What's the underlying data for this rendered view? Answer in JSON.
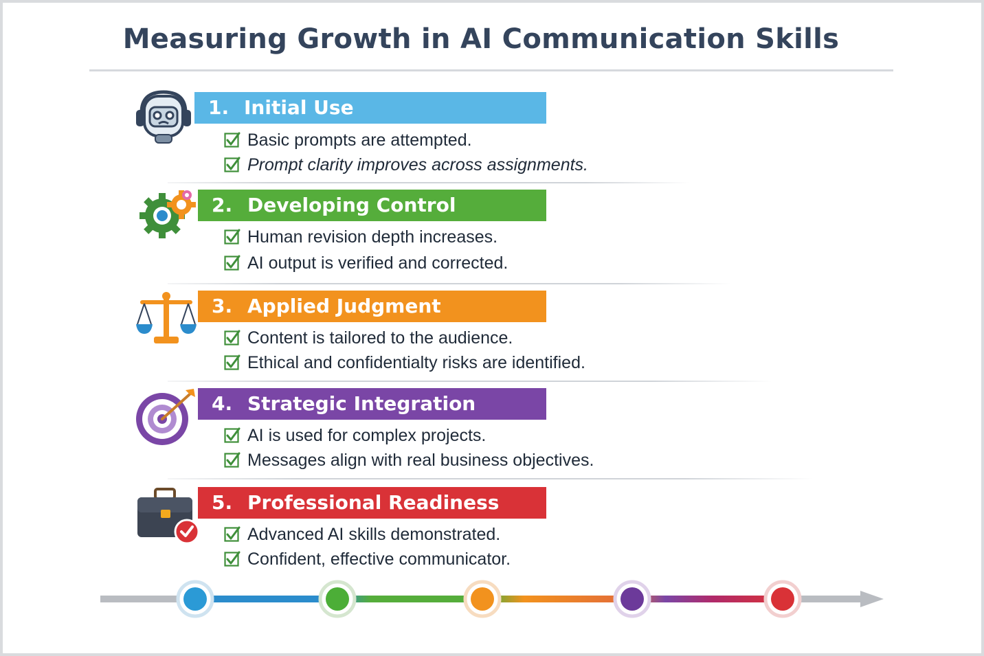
{
  "title": "Measuring Growth in AI Communication Skills",
  "colors": {
    "stage1": "#5ab7e6",
    "stage2": "#55ad3b",
    "stage3": "#f2921e",
    "stage4": "#7a46a6",
    "stage5": "#d93237",
    "check": "#3f8f3a",
    "title": "#34445c"
  },
  "stages": [
    {
      "number": "1.",
      "label": "Initial Use",
      "icon": "robot-headset-icon",
      "items": [
        "Basic prompts are attempted.",
        "Prompt clarity improves across assignments."
      ]
    },
    {
      "number": "2.",
      "label": "Developing Control",
      "icon": "gears-icon",
      "items": [
        "Human revision depth increases.",
        "AI output is verified and corrected."
      ]
    },
    {
      "number": "3.",
      "label": "Applied Judgment",
      "icon": "scales-icon",
      "items": [
        "Content is tailored to the audience.",
        "Ethical and confidentialty risks are identified."
      ]
    },
    {
      "number": "4.",
      "label": "Strategic Integration",
      "icon": "target-arrow-icon",
      "items": [
        "AI is used for complex projects.",
        "Messages align with real business objectives."
      ]
    },
    {
      "number": "5.",
      "label": "Professional Readiness",
      "icon": "briefcase-check-icon",
      "items": [
        "Advanced AI skills demonstrated.",
        "Confident, effective communicator."
      ]
    }
  ]
}
